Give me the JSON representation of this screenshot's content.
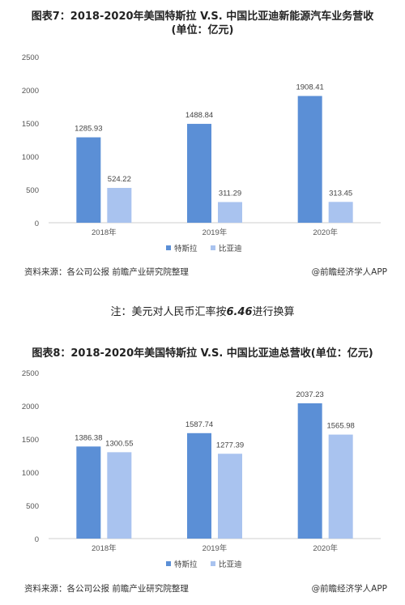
{
  "charts": [
    {
      "title_line1": "图表7：2018-2020年美国特斯拉 V.S. 中国比亚迪新能源汽车业务营收",
      "title_line2": "(单位：亿元)",
      "source": "资料来源：各公司公报 前瞻产业研究院整理",
      "app": "@前瞻经济学人APP"
    },
    {
      "title": "图表8：2018-2020年美国特斯拉 V.S. 中国比亚迪总营收(单位：亿元)",
      "source": "资料来源：各公司公报 前瞻产业研究院整理",
      "app": "@前瞻经济学人APP"
    }
  ],
  "note": {
    "prefix": "注：美元对人民币汇率按",
    "rate": "6.46",
    "suffix": "进行换算"
  },
  "colors": {
    "tesla": "#5b8fd6",
    "byd": "#a9c3ef"
  },
  "chart_data": [
    {
      "type": "bar",
      "title": "2018-2020年美国特斯拉 V.S. 中国比亚迪新能源汽车业务营收(单位：亿元)",
      "categories": [
        "2018年",
        "2019年",
        "2020年"
      ],
      "series": [
        {
          "name": "特斯拉",
          "values": [
            1285.93,
            1488.84,
            1908.41
          ]
        },
        {
          "name": "比亚迪",
          "values": [
            524.22,
            311.29,
            313.45
          ]
        }
      ],
      "ylim": [
        0,
        2500
      ],
      "yticks": [
        0,
        500,
        1000,
        1500,
        2000,
        2500
      ],
      "value_labels": [
        [
          "1285.93",
          "1488.84",
          "1908.41"
        ],
        [
          "524.22",
          "311.29",
          "313.45"
        ]
      ],
      "grid": false,
      "legend": "bottom"
    },
    {
      "type": "bar",
      "title": "2018-2020年美国特斯拉 V.S. 中国比亚迪总营收(单位：亿元)",
      "categories": [
        "2018年",
        "2019年",
        "2020年"
      ],
      "series": [
        {
          "name": "特斯拉",
          "values": [
            1386.38,
            1587.74,
            2037.23
          ]
        },
        {
          "name": "比亚迪",
          "values": [
            1300.55,
            1277.39,
            1565.98
          ]
        }
      ],
      "ylim": [
        0,
        2500
      ],
      "yticks": [
        0,
        500,
        1000,
        1500,
        2000,
        2500
      ],
      "value_labels": [
        [
          "1386.38",
          "1587.74",
          "2037.23"
        ],
        [
          "1300.55",
          "1277.39",
          "1565.98"
        ]
      ],
      "grid": false,
      "legend": "bottom"
    }
  ]
}
